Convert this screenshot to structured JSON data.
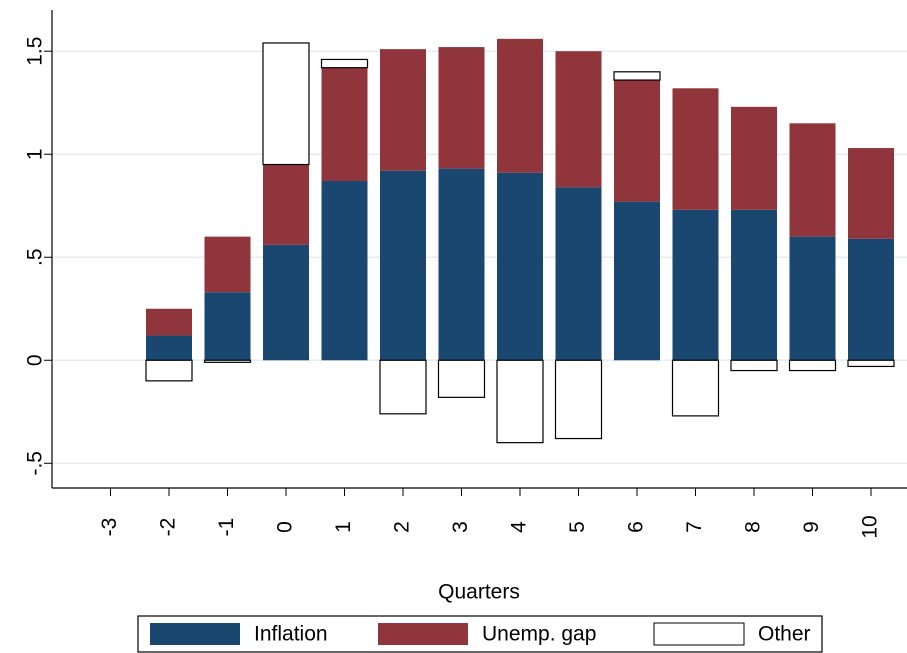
{
  "chart_data": {
    "type": "bar",
    "stacked": true,
    "x_label": "Quarters",
    "categories": [
      "-3",
      "-2",
      "-1",
      "0",
      "1",
      "2",
      "3",
      "4",
      "5",
      "6",
      "7",
      "8",
      "9",
      "10"
    ],
    "series": [
      {
        "name": "Inflation",
        "color": "#1a476f",
        "values": [
          0,
          0.12,
          0.33,
          0.56,
          0.87,
          0.92,
          0.93,
          0.91,
          0.84,
          0.77,
          0.73,
          0.73,
          0.6,
          0.59
        ]
      },
      {
        "name": "Unemp. gap",
        "color": "#90353b",
        "values": [
          0,
          0.13,
          0.27,
          0.39,
          0.55,
          0.59,
          0.59,
          0.65,
          0.66,
          0.59,
          0.59,
          0.5,
          0.55,
          0.44
        ]
      },
      {
        "name": "Other",
        "color": "#ffffff",
        "values": [
          0,
          -0.1,
          -0.01,
          0.59,
          0.04,
          -0.26,
          -0.18,
          -0.4,
          -0.38,
          0.04,
          -0.27,
          -0.05,
          -0.05,
          -0.03
        ]
      }
    ],
    "ylim": [
      -0.62,
      1.7
    ],
    "yticks": [
      {
        "value": -0.5,
        "label": "-.5"
      },
      0,
      {
        "value": 0.5,
        "label": ".5"
      },
      1,
      1.5
    ],
    "grid": true,
    "legend": "bottom"
  }
}
